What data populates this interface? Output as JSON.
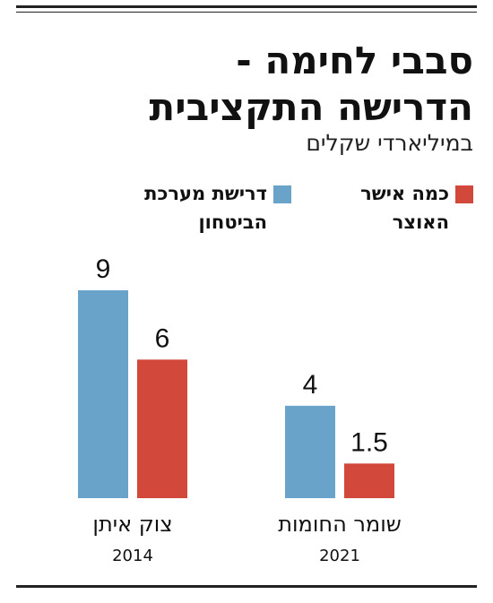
{
  "chart_data": {
    "type": "bar",
    "title_lines": [
      "סבבי לחימה -",
      "הדרישה התקציבית"
    ],
    "subtitle": "במיליארדי שקלים",
    "categories": [
      {
        "name": "צוק איתן",
        "year": "2014"
      },
      {
        "name": "שומר החומות",
        "year": "2021"
      }
    ],
    "series": [
      {
        "name_lines": [
          "דרישת מערכת",
          "הביטחון"
        ],
        "color": "#6aa3c9",
        "values": [
          9,
          4
        ]
      },
      {
        "name_lines": [
          "כמה אישר",
          "האוצר"
        ],
        "color": "#d2493b",
        "values": [
          6,
          1.5
        ]
      }
    ],
    "value_labels": [
      [
        "9",
        "4"
      ],
      [
        "6",
        "1.5"
      ]
    ],
    "ylim": [
      0,
      9
    ],
    "grid": false,
    "legend_position": "top"
  }
}
